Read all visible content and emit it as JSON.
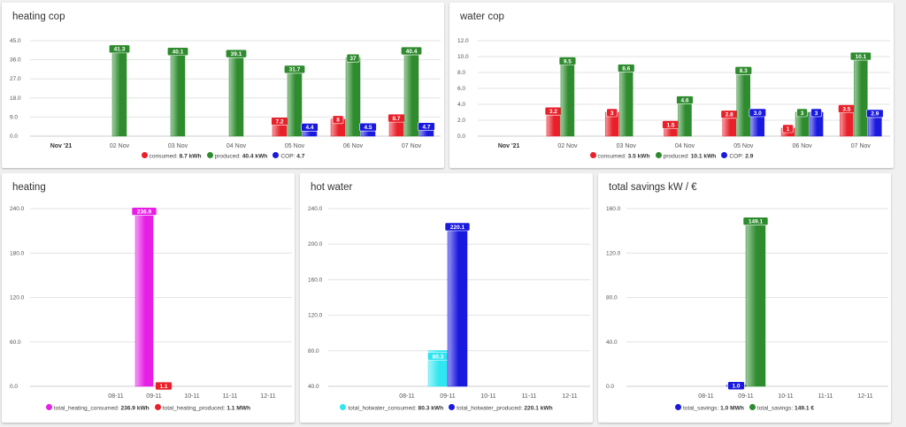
{
  "chart_data": [
    {
      "id": "heating-cop",
      "type": "bar",
      "title": "heating cop",
      "ylim": [
        0,
        45
      ],
      "yticks": [
        "45.0",
        "36.0",
        "27.0",
        "18.0",
        "9.0",
        "0.0"
      ],
      "categories": [
        "Nov '21",
        "02 Nov",
        "03 Nov",
        "04 Nov",
        "05 Nov",
        "06 Nov",
        "07 Nov"
      ],
      "series": [
        {
          "name": "consumed",
          "color": "#e8202a",
          "values": [
            null,
            null,
            null,
            null,
            7.2,
            8,
            8.7
          ],
          "labels": [
            "",
            "",
            "",
            "",
            "7.2",
            "8",
            "8.7"
          ]
        },
        {
          "name": "produced",
          "color": "#2e8b2e",
          "values": [
            null,
            41.3,
            40.1,
            39.1,
            31.7,
            37,
            40.4
          ],
          "labels": [
            "",
            "41.3",
            "40.1",
            "39.1",
            "31.7",
            "37",
            "40.4"
          ]
        },
        {
          "name": "COP",
          "color": "#1a1adf",
          "values": [
            null,
            null,
            null,
            null,
            4.4,
            4.5,
            4.7
          ],
          "labels": [
            "",
            "",
            "",
            "",
            "4.4",
            "4.5",
            "4.7"
          ]
        }
      ],
      "legend": [
        {
          "label": "consumed:",
          "value": "8.7 kWh",
          "color": "#e8202a"
        },
        {
          "label": "produced:",
          "value": "40.4 kWh",
          "color": "#2e8b2e"
        },
        {
          "label": "COP:",
          "value": "4.7",
          "color": "#1a1adf"
        }
      ]
    },
    {
      "id": "water-cop",
      "type": "bar",
      "title": "water cop",
      "ylim": [
        0,
        12
      ],
      "yticks": [
        "12.0",
        "10.0",
        "8.0",
        "6.0",
        "4.0",
        "2.0",
        "0.0"
      ],
      "categories": [
        "Nov '21",
        "02 Nov",
        "03 Nov",
        "04 Nov",
        "05 Nov",
        "06 Nov",
        "07 Nov"
      ],
      "series": [
        {
          "name": "consumed",
          "color": "#e8202a",
          "values": [
            null,
            3.2,
            3,
            1.5,
            2.8,
            1,
            3.5
          ],
          "labels": [
            "",
            "3.2",
            "3",
            "1.5",
            "2.8",
            "1",
            "3.5"
          ]
        },
        {
          "name": "produced",
          "color": "#2e8b2e",
          "values": [
            null,
            9.5,
            8.6,
            4.6,
            8.3,
            3,
            10.1
          ],
          "labels": [
            "",
            "9.5",
            "8.6",
            "4.6",
            "8.3",
            "3",
            "10.1"
          ]
        },
        {
          "name": "COP",
          "color": "#1a1adf",
          "values": [
            null,
            null,
            null,
            null,
            3.0,
            3,
            2.9
          ],
          "labels": [
            "",
            "",
            "",
            "",
            "3.0",
            "3",
            "2.9"
          ]
        }
      ],
      "legend": [
        {
          "label": "consumed:",
          "value": "3.5 kWh",
          "color": "#e8202a"
        },
        {
          "label": "produced:",
          "value": "10.1 kWh",
          "color": "#2e8b2e"
        },
        {
          "label": "COP:",
          "value": "2.9",
          "color": "#1a1adf"
        }
      ]
    },
    {
      "id": "heating",
      "type": "bar",
      "title": "heating",
      "ylim": [
        0,
        240
      ],
      "yticks": [
        "240.0",
        "180.0",
        "120.0",
        "60.0",
        "0.0"
      ],
      "categories": [
        "08-11",
        "09-11",
        "10-11",
        "11-11",
        "12-11"
      ],
      "series": [
        {
          "name": "total_heating_consumed",
          "color": "#e61ee6",
          "values": [
            null,
            236.9,
            null,
            null,
            null
          ],
          "labels": [
            "",
            "236.9",
            "",
            "",
            ""
          ]
        },
        {
          "name": "total_heating_produced",
          "color": "#e8202a",
          "values": [
            null,
            1.1,
            null,
            null,
            null
          ],
          "labels": [
            "",
            "1.1",
            "",
            "",
            ""
          ]
        }
      ],
      "legend": [
        {
          "label": "total_heating_consumed:",
          "value": "236.9 kWh",
          "color": "#e61ee6"
        },
        {
          "label": "total_heating_produced:",
          "value": "1.1 MWh",
          "color": "#e8202a"
        }
      ]
    },
    {
      "id": "hot-water",
      "type": "bar",
      "title": "hot water",
      "ylim": [
        40,
        240
      ],
      "yticks": [
        "240.0",
        "200.0",
        "160.0",
        "120.0",
        "80.0",
        "40.0"
      ],
      "categories": [
        "08-11",
        "09-11",
        "10-11",
        "11-11",
        "12-11"
      ],
      "series": [
        {
          "name": "total_hotwater_consumed",
          "color": "#30e6f0",
          "values": [
            null,
            80.3,
            null,
            null,
            null
          ],
          "labels": [
            "",
            "80.3",
            "",
            "",
            ""
          ]
        },
        {
          "name": "total_hotwater_produced",
          "color": "#1a1adf",
          "values": [
            null,
            220.1,
            null,
            null,
            null
          ],
          "labels": [
            "",
            "220.1",
            "",
            "",
            ""
          ]
        }
      ],
      "legend": [
        {
          "label": "total_hotwater_consumed:",
          "value": "80.3 kWh",
          "color": "#30e6f0"
        },
        {
          "label": "total_hotwater_produced:",
          "value": "220.1 kWh",
          "color": "#1a1adf"
        }
      ]
    },
    {
      "id": "total-savings",
      "type": "bar",
      "title": "total savings kW / €",
      "ylim": [
        0,
        160
      ],
      "yticks": [
        "160.0",
        "120.0",
        "80.0",
        "40.0",
        "0.0"
      ],
      "categories": [
        "08-11",
        "09-11",
        "10-11",
        "11-11",
        "12-11"
      ],
      "series": [
        {
          "name": "total_savings",
          "color": "#1a1adf",
          "values": [
            null,
            1.0,
            null,
            null,
            null
          ],
          "labels": [
            "",
            "1.0",
            "",
            "",
            ""
          ]
        },
        {
          "name": "total_savings",
          "color": "#2e8b2e",
          "values": [
            null,
            149.1,
            null,
            null,
            null
          ],
          "labels": [
            "",
            "149.1",
            "",
            "",
            ""
          ]
        }
      ],
      "legend": [
        {
          "label": "total_savings:",
          "value": "1.0 MWh",
          "color": "#1a1adf"
        },
        {
          "label": "total_savings:",
          "value": "149.1 €",
          "color": "#2e8b2e"
        }
      ]
    }
  ]
}
